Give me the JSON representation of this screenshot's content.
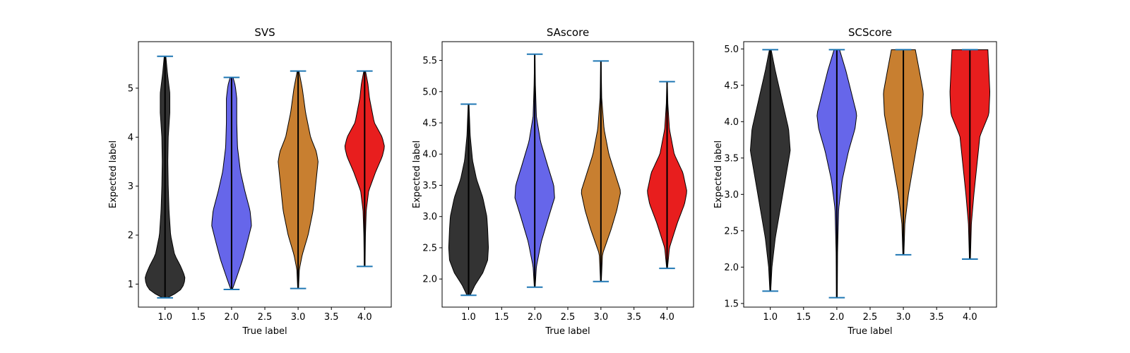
{
  "chart_data": [
    {
      "type": "violin",
      "title": "SVS",
      "xlabel": "True label",
      "ylabel": "Expected label",
      "xlim": [
        0.6,
        4.4
      ],
      "ylim": [
        0.53,
        5.95
      ],
      "xticks": [
        "1.0",
        "1.5",
        "2.0",
        "2.5",
        "3.0",
        "3.5",
        "4.0"
      ],
      "yticks": [
        "1",
        "2",
        "3",
        "4",
        "5"
      ],
      "violins": [
        {
          "x": 1.0,
          "color": "#333333",
          "min": 0.72,
          "max": 5.65,
          "profile": [
            [
              0.72,
              0.03
            ],
            [
              0.85,
              0.18
            ],
            [
              1.0,
              0.24
            ],
            [
              1.15,
              0.25
            ],
            [
              1.35,
              0.2
            ],
            [
              1.6,
              0.12
            ],
            [
              2.0,
              0.07
            ],
            [
              2.5,
              0.05
            ],
            [
              3.0,
              0.04
            ],
            [
              3.5,
              0.035
            ],
            [
              4.0,
              0.04
            ],
            [
              4.5,
              0.06
            ],
            [
              4.9,
              0.06
            ],
            [
              5.3,
              0.03
            ],
            [
              5.65,
              0.01
            ]
          ]
        },
        {
          "x": 2.0,
          "color": "#6666ea",
          "min": 0.89,
          "max": 5.22,
          "profile": [
            [
              0.89,
              0.01
            ],
            [
              1.1,
              0.06
            ],
            [
              1.5,
              0.15
            ],
            [
              1.9,
              0.22
            ],
            [
              2.2,
              0.27
            ],
            [
              2.5,
              0.25
            ],
            [
              2.9,
              0.18
            ],
            [
              3.3,
              0.12
            ],
            [
              3.8,
              0.08
            ],
            [
              4.3,
              0.07
            ],
            [
              4.8,
              0.07
            ],
            [
              5.05,
              0.05
            ],
            [
              5.22,
              0.02
            ]
          ]
        },
        {
          "x": 3.0,
          "color": "#c87f30",
          "min": 0.91,
          "max": 5.35,
          "profile": [
            [
              0.91,
              0.005
            ],
            [
              1.3,
              0.015
            ],
            [
              1.6,
              0.05
            ],
            [
              2.0,
              0.12
            ],
            [
              2.5,
              0.18
            ],
            [
              3.0,
              0.21
            ],
            [
              3.5,
              0.24
            ],
            [
              3.7,
              0.22
            ],
            [
              4.0,
              0.15
            ],
            [
              4.5,
              0.09
            ],
            [
              5.0,
              0.05
            ],
            [
              5.35,
              0.01
            ]
          ]
        },
        {
          "x": 4.0,
          "color": "#e81e1e",
          "min": 1.36,
          "max": 5.35,
          "profile": [
            [
              1.36,
              0.005
            ],
            [
              2.0,
              0.01
            ],
            [
              2.5,
              0.02
            ],
            [
              2.9,
              0.05
            ],
            [
              3.3,
              0.14
            ],
            [
              3.6,
              0.22
            ],
            [
              3.8,
              0.25
            ],
            [
              4.0,
              0.22
            ],
            [
              4.3,
              0.12
            ],
            [
              4.8,
              0.06
            ],
            [
              5.1,
              0.04
            ],
            [
              5.35,
              0.01
            ]
          ]
        }
      ]
    },
    {
      "type": "violin",
      "title": "SAscore",
      "xlabel": "True label",
      "ylabel": "Expected label",
      "xlim": [
        0.6,
        4.4
      ],
      "ylim": [
        1.55,
        5.8
      ],
      "xticks": [
        "1.0",
        "1.5",
        "2.0",
        "2.5",
        "3.0",
        "3.5",
        "4.0"
      ],
      "yticks": [
        "2.0",
        "2.5",
        "3.0",
        "3.5",
        "4.0",
        "4.5",
        "5.0",
        "5.5"
      ],
      "violins": [
        {
          "x": 1.0,
          "color": "#333333",
          "min": 1.74,
          "max": 4.8,
          "profile": [
            [
              1.74,
              0.02
            ],
            [
              1.9,
              0.08
            ],
            [
              2.1,
              0.18
            ],
            [
              2.3,
              0.24
            ],
            [
              2.5,
              0.25
            ],
            [
              2.8,
              0.24
            ],
            [
              3.0,
              0.23
            ],
            [
              3.3,
              0.18
            ],
            [
              3.6,
              0.1
            ],
            [
              3.9,
              0.05
            ],
            [
              4.3,
              0.02
            ],
            [
              4.8,
              0.005
            ]
          ]
        },
        {
          "x": 2.0,
          "color": "#6666ea",
          "min": 1.87,
          "max": 5.6,
          "profile": [
            [
              1.87,
              0.005
            ],
            [
              2.2,
              0.02
            ],
            [
              2.6,
              0.08
            ],
            [
              3.0,
              0.17
            ],
            [
              3.3,
              0.24
            ],
            [
              3.5,
              0.23
            ],
            [
              3.8,
              0.16
            ],
            [
              4.2,
              0.07
            ],
            [
              4.6,
              0.02
            ],
            [
              5.1,
              0.008
            ],
            [
              5.6,
              0.002
            ]
          ]
        },
        {
          "x": 3.0,
          "color": "#c87f30",
          "min": 1.96,
          "max": 5.49,
          "profile": [
            [
              1.96,
              0.005
            ],
            [
              2.4,
              0.02
            ],
            [
              2.8,
              0.13
            ],
            [
              3.1,
              0.2
            ],
            [
              3.4,
              0.25
            ],
            [
              3.6,
              0.2
            ],
            [
              4.0,
              0.1
            ],
            [
              4.4,
              0.04
            ],
            [
              4.9,
              0.01
            ],
            [
              5.49,
              0.002
            ]
          ]
        },
        {
          "x": 4.0,
          "color": "#e81e1e",
          "min": 2.17,
          "max": 5.16,
          "profile": [
            [
              2.17,
              0.005
            ],
            [
              2.5,
              0.03
            ],
            [
              2.9,
              0.13
            ],
            [
              3.2,
              0.22
            ],
            [
              3.4,
              0.25
            ],
            [
              3.7,
              0.2
            ],
            [
              4.0,
              0.09
            ],
            [
              4.4,
              0.03
            ],
            [
              4.8,
              0.01
            ],
            [
              5.16,
              0.003
            ]
          ]
        }
      ]
    },
    {
      "type": "violin",
      "title": "SCScore",
      "xlabel": "True label",
      "ylabel": "Expected label",
      "xlim": [
        0.6,
        4.4
      ],
      "ylim": [
        1.45,
        5.1
      ],
      "xticks": [
        "1.0",
        "1.5",
        "2.0",
        "2.5",
        "3.0",
        "3.5",
        "4.0"
      ],
      "yticks": [
        "1.5",
        "2.0",
        "2.5",
        "3.0",
        "3.5",
        "4.0",
        "4.5",
        "5.0"
      ],
      "violins": [
        {
          "x": 1.0,
          "color": "#333333",
          "min": 1.67,
          "max": 4.99,
          "profile": [
            [
              1.67,
              0.005
            ],
            [
              2.0,
              0.02
            ],
            [
              2.4,
              0.06
            ],
            [
              2.8,
              0.12
            ],
            [
              3.2,
              0.18
            ],
            [
              3.6,
              0.24
            ],
            [
              3.9,
              0.22
            ],
            [
              4.3,
              0.14
            ],
            [
              4.7,
              0.06
            ],
            [
              4.99,
              0.01
            ]
          ]
        },
        {
          "x": 2.0,
          "color": "#6666ea",
          "min": 1.58,
          "max": 4.99,
          "profile": [
            [
              1.58,
              0.005
            ],
            [
              2.2,
              0.008
            ],
            [
              2.8,
              0.02
            ],
            [
              3.2,
              0.06
            ],
            [
              3.6,
              0.13
            ],
            [
              3.9,
              0.2
            ],
            [
              4.1,
              0.22
            ],
            [
              4.4,
              0.16
            ],
            [
              4.7,
              0.1
            ],
            [
              4.99,
              0.03
            ]
          ]
        },
        {
          "x": 3.0,
          "color": "#c87f30",
          "min": 2.17,
          "max": 4.99,
          "profile": [
            [
              2.17,
              0.005
            ],
            [
              2.6,
              0.015
            ],
            [
              3.0,
              0.05
            ],
            [
              3.4,
              0.1
            ],
            [
              3.8,
              0.15
            ],
            [
              4.1,
              0.19
            ],
            [
              4.4,
              0.2
            ],
            [
              4.7,
              0.16
            ],
            [
              4.99,
              0.12
            ]
          ]
        },
        {
          "x": 4.0,
          "color": "#e81e1e",
          "min": 2.11,
          "max": 4.99,
          "profile": [
            [
              2.11,
              0.005
            ],
            [
              2.6,
              0.015
            ],
            [
              3.0,
              0.04
            ],
            [
              3.4,
              0.07
            ],
            [
              3.8,
              0.1
            ],
            [
              4.1,
              0.19
            ],
            [
              4.4,
              0.2
            ],
            [
              4.7,
              0.19
            ],
            [
              4.99,
              0.18
            ]
          ]
        }
      ]
    }
  ]
}
